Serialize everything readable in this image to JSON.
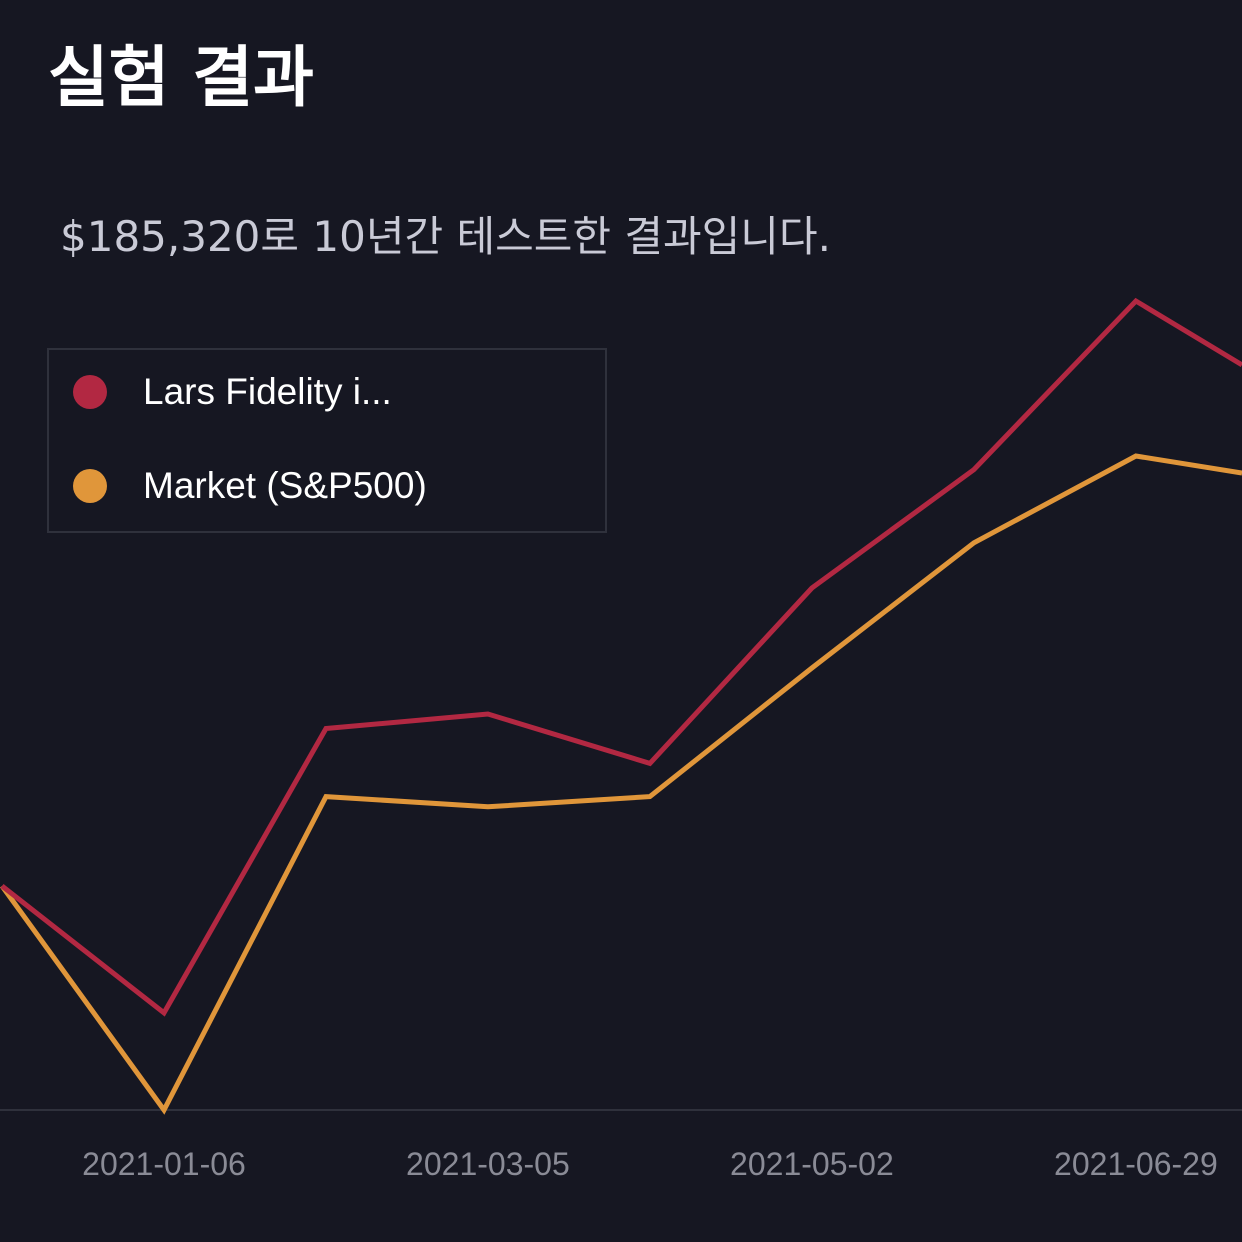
{
  "title": "실험 결과",
  "subtitle": "$185,320로 10년간 테스트한 결과입니다.",
  "colors": {
    "background": "#161722",
    "series1": "#b22842",
    "series2": "#e0963a",
    "axis": "#2f313c",
    "tick": "#8a8b96"
  },
  "chart_data": {
    "type": "line",
    "title": "실험 결과",
    "subtitle": "$185,320로 10년간 테스트한 결과입니다.",
    "xlabel": "",
    "ylabel": "",
    "grid": false,
    "legend_position": "top-left",
    "x_ticks": [
      "2021-01-06",
      "2021-03-05",
      "2021-05-02",
      "2021-06-29"
    ],
    "x": [
      "2020-12-08",
      "2021-01-06",
      "2021-02-04",
      "2021-03-05",
      "2021-04-03",
      "2021-05-02",
      "2021-05-31",
      "2021-06-29",
      "2021-07-18"
    ],
    "ylim": [
      0,
      100
    ],
    "series": [
      {
        "name": "Lars Fidelity i...",
        "values": [
          26.3,
          11.4,
          44.8,
          46.5,
          40.7,
          61.3,
          75.2,
          95.0,
          87.5
        ]
      },
      {
        "name": "Market (S&P500)",
        "values": [
          26.3,
          0.0,
          36.8,
          35.6,
          36.8,
          51.9,
          66.6,
          76.8,
          74.8
        ]
      }
    ]
  }
}
